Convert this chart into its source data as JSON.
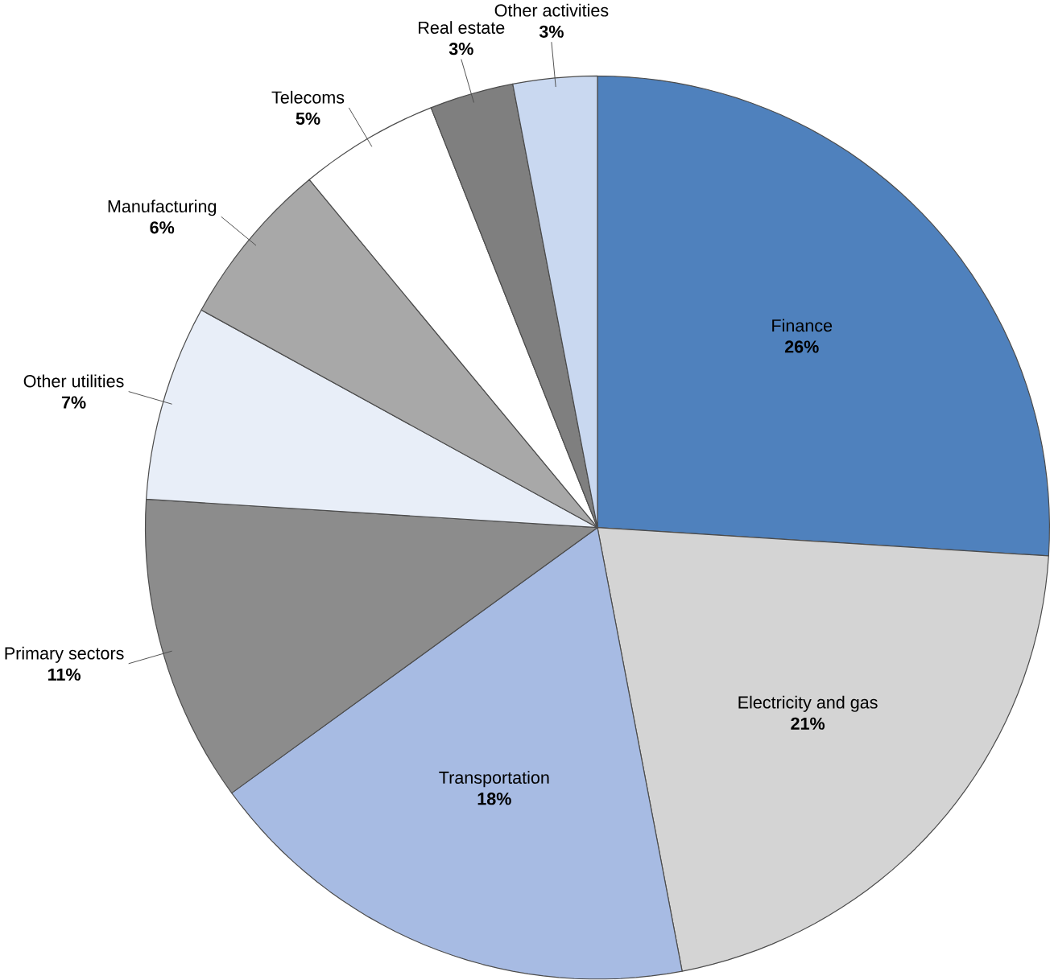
{
  "chart_data": {
    "type": "pie",
    "categories": [
      "Finance",
      "Electricity and gas",
      "Transportation",
      "Primary sectors",
      "Other utilities",
      "Manufacturing",
      "Telecoms",
      "Real estate",
      "Other activities"
    ],
    "values": [
      26,
      21,
      18,
      11,
      7,
      6,
      5,
      3,
      3
    ],
    "value_labels": [
      "26%",
      "21%",
      "18%",
      "11%",
      "7%",
      "6%",
      "5%",
      "3%",
      "3%"
    ],
    "colors": [
      "#4f81bd",
      "#d4d4d4",
      "#a7bbe3",
      "#8c8c8c",
      "#e8eef8",
      "#a8a8a8",
      "#ffffff",
      "#7f7f7f",
      "#c9d8f0"
    ]
  }
}
